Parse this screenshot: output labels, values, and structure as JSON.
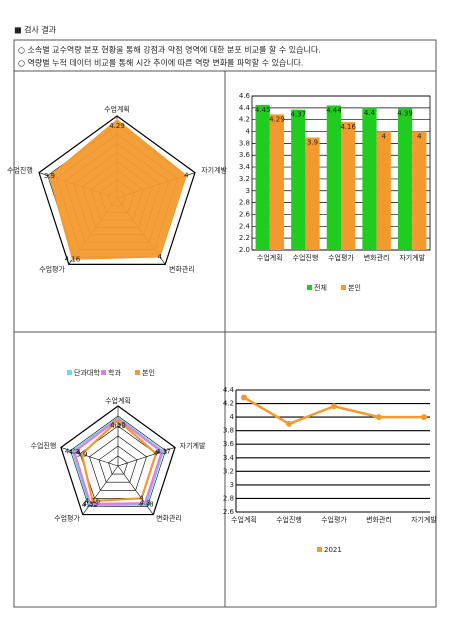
{
  "header": {
    "title": "■ 검사 결과",
    "notes": [
      "○ 소속별 교수역량 분포 현황을 통해 강점과 약점 영역에 대한 분포 비교를 할 수 있습니다.",
      "○ 역량별 누적 데이터 비교를 통해 시간 추이에 따른 역량 변화를 파악할 수 있습니다."
    ]
  },
  "chart_data": [
    {
      "type": "radar",
      "categories": [
        "수업계획",
        "수업진행",
        "수업평가",
        "변화관리",
        "자기계발"
      ],
      "rlim": [
        0,
        4.5
      ],
      "rticks": [
        0.5,
        1,
        1.5,
        2,
        2.5,
        3,
        3.5,
        4,
        4.5
      ],
      "filled": true,
      "series": [
        {
          "color": "#f39a2e",
          "values": [
            4.29,
            3.9,
            4.16,
            4,
            4
          ]
        }
      ]
    },
    {
      "type": "bar",
      "categories": [
        "수업계획",
        "수업진행",
        "수업평가",
        "변화관리",
        "자기계발"
      ],
      "ylim": [
        2,
        4.6
      ],
      "yticks": [
        {
          "value": 2,
          "label": "2.0"
        },
        2.2,
        2.4,
        2.6,
        2.8,
        3,
        3.2,
        3.4,
        3.6,
        3.8,
        4,
        4.2,
        4.4,
        4.6
      ],
      "grid": true,
      "legend": "bottom",
      "series": [
        {
          "name": "전체",
          "color": "#1fcc1f",
          "values": [
            4.45,
            4.37,
            4.44,
            4.4,
            4.39
          ]
        },
        {
          "name": "본인",
          "color": "#f39a2e",
          "values": [
            4.29,
            3.9,
            4.16,
            4,
            4
          ]
        }
      ]
    },
    {
      "type": "radar",
      "categories": [
        "수업계획",
        "수업진행",
        "수업평가",
        "변화관리",
        "자기계발"
      ],
      "rlim": [
        2,
        5
      ],
      "rticks": [
        2.5,
        3,
        3.5,
        4,
        4.5,
        5
      ],
      "filled": false,
      "legend": "top",
      "series": [
        {
          "name": "단과대학",
          "color": "#5fe0e8",
          "values": [
            4.4,
            4.38,
            4.42,
            4.38,
            4.37
          ]
        },
        {
          "name": "학과",
          "color": "#e27ae8",
          "values": [
            4.35,
            4.3,
            4.35,
            4.3,
            4.3
          ]
        },
        {
          "name": "본인",
          "color": "#f39a2e",
          "values": [
            4.29,
            3.9,
            4.16,
            4,
            4
          ]
        }
      ]
    },
    {
      "type": "line",
      "categories": [
        "수업계획",
        "수업진행",
        "수업평가",
        "변화관리",
        "자기계발"
      ],
      "ylim": [
        2.6,
        4.4
      ],
      "yticks": [
        2.6,
        2.8,
        3,
        3.2,
        3.4,
        3.6,
        3.8,
        4,
        4.2,
        4.4
      ],
      "grid": true,
      "legend": "bottom",
      "series": [
        {
          "name": "2021",
          "color": "#f39a2e",
          "values": [
            4.29,
            3.9,
            4.16,
            4,
            4
          ]
        }
      ]
    }
  ]
}
